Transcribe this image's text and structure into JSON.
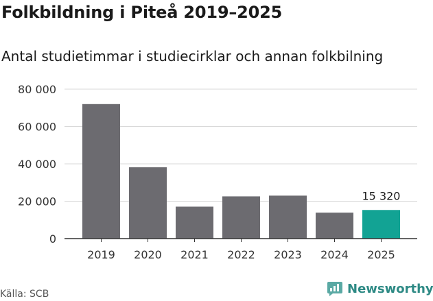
{
  "title": "Folkbildning i Piteå 2019–2025",
  "subtitle": "Antal studietimmar i studiecirklar och annan folkbilning",
  "source": "Källa: SCB",
  "brand": "Newsworthy",
  "colors": {
    "bar": "#6c6b70",
    "highlight": "#12a394",
    "grid": "#d9d9d9",
    "axis": "#333333",
    "brand": "#2e8a85"
  },
  "chart_data": {
    "type": "bar",
    "categories": [
      "2019",
      "2020",
      "2021",
      "2022",
      "2023",
      "2024",
      "2025"
    ],
    "values": [
      72000,
      38200,
      17100,
      22600,
      23000,
      13900,
      15320
    ],
    "highlight_index": 6,
    "value_labels": [
      null,
      null,
      null,
      null,
      null,
      null,
      "15 320"
    ],
    "yticks": [
      0,
      20000,
      40000,
      60000,
      80000
    ],
    "ytick_labels": [
      "0",
      "20 000",
      "40 000",
      "60 000",
      "80 000"
    ],
    "ylim": [
      0,
      80000
    ],
    "grid": true
  }
}
